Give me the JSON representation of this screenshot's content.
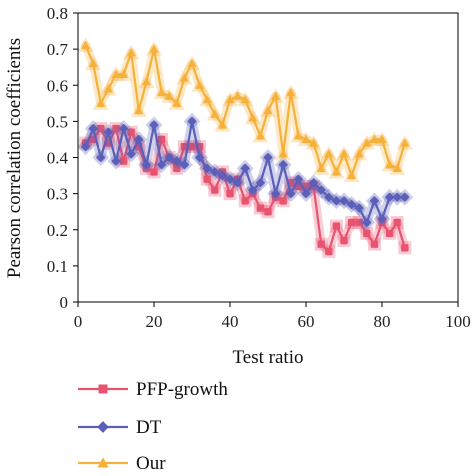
{
  "chart_data": {
    "type": "line",
    "title": "",
    "xlabel": "Test ratio",
    "ylabel": "Pearson correlation coefficients",
    "xlim": [
      0,
      100
    ],
    "ylim": [
      0,
      0.8
    ],
    "xticks": [
      0,
      20,
      40,
      60,
      80,
      100
    ],
    "yticks": [
      0,
      0.1,
      0.2,
      0.3,
      0.4,
      0.5,
      0.6,
      0.7,
      0.8
    ],
    "grid": false,
    "legend_position": "bottom-left, below plot",
    "x": [
      2,
      4,
      6,
      8,
      10,
      12,
      14,
      16,
      18,
      20,
      22,
      24,
      26,
      28,
      30,
      32,
      34,
      36,
      38,
      40,
      42,
      44,
      46,
      48,
      50,
      52,
      54,
      56,
      58,
      60,
      62,
      64,
      66,
      68,
      70,
      72,
      74,
      76,
      78,
      80,
      82,
      84,
      86
    ],
    "series": [
      {
        "name": "PFP-growth",
        "color": "#e8536f",
        "marker": "square",
        "values": [
          0.44,
          0.45,
          0.48,
          0.44,
          0.48,
          0.39,
          0.47,
          0.43,
          0.37,
          0.36,
          0.45,
          0.4,
          0.37,
          0.43,
          0.43,
          0.43,
          0.34,
          0.31,
          0.36,
          0.3,
          0.34,
          0.28,
          0.3,
          0.26,
          0.25,
          0.29,
          0.28,
          0.33,
          0.32,
          0.32,
          0.32,
          0.16,
          0.14,
          0.21,
          0.17,
          0.22,
          0.22,
          0.19,
          0.16,
          0.22,
          0.19,
          0.22,
          0.15
        ]
      },
      {
        "name": "DT",
        "color": "#5b5fb8",
        "marker": "diamond",
        "values": [
          0.43,
          0.48,
          0.4,
          0.47,
          0.39,
          0.48,
          0.41,
          0.45,
          0.38,
          0.49,
          0.38,
          0.4,
          0.39,
          0.38,
          0.5,
          0.4,
          0.37,
          0.36,
          0.35,
          0.34,
          0.33,
          0.37,
          0.31,
          0.33,
          0.4,
          0.3,
          0.38,
          0.3,
          0.34,
          0.3,
          0.33,
          0.31,
          0.29,
          0.28,
          0.28,
          0.27,
          0.26,
          0.22,
          0.28,
          0.23,
          0.29,
          0.29,
          0.29
        ]
      },
      {
        "name": "Our",
        "color": "#f5b13a",
        "marker": "triangle",
        "values": [
          0.71,
          0.66,
          0.55,
          0.59,
          0.63,
          0.63,
          0.69,
          0.53,
          0.61,
          0.7,
          0.58,
          0.57,
          0.55,
          0.62,
          0.66,
          0.6,
          0.56,
          0.52,
          0.49,
          0.56,
          0.57,
          0.56,
          0.51,
          0.46,
          0.53,
          0.57,
          0.41,
          0.58,
          0.46,
          0.45,
          0.44,
          0.37,
          0.41,
          0.36,
          0.41,
          0.35,
          0.41,
          0.44,
          0.45,
          0.45,
          0.38,
          0.37,
          0.44
        ]
      }
    ]
  }
}
